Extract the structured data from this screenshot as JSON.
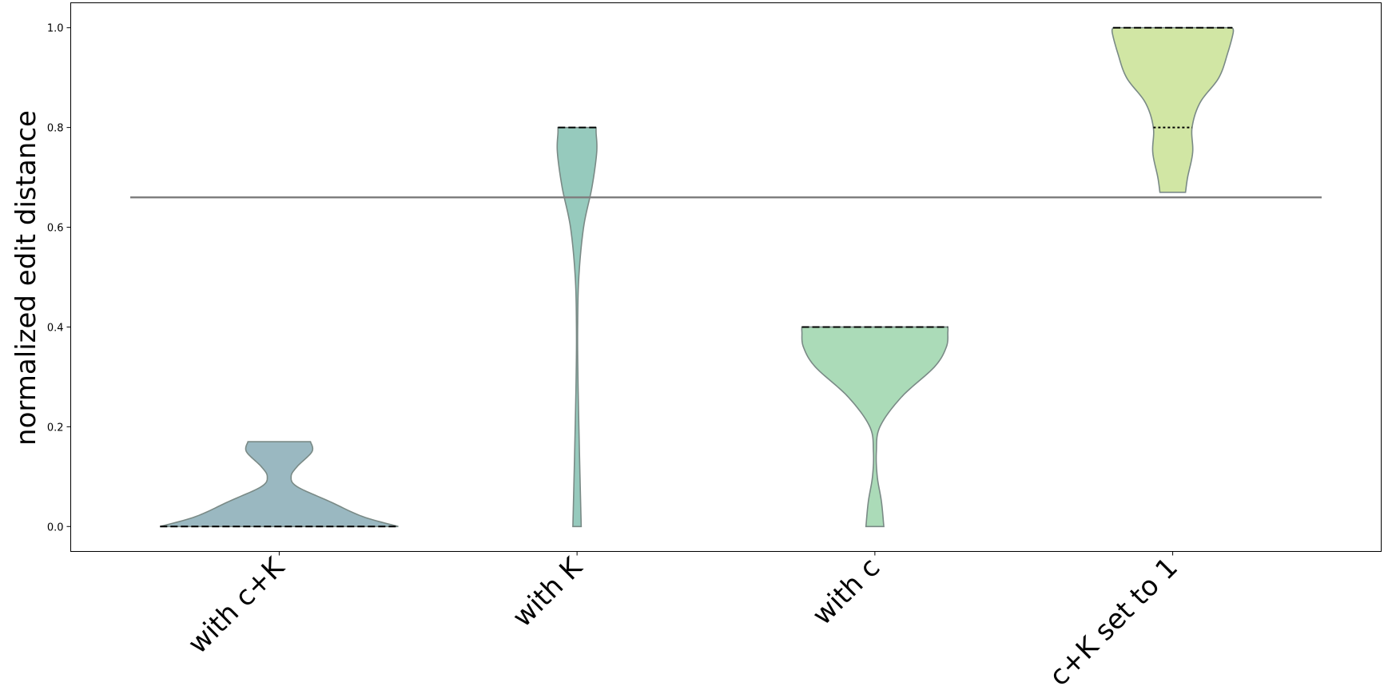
{
  "chart_data": {
    "type": "violin",
    "title": "",
    "xlabel": "",
    "ylabel": "normalized edit distance",
    "ylim": [
      -0.05,
      1.05
    ],
    "yticks": [
      0.0,
      0.2,
      0.4,
      0.6,
      0.8,
      1.0
    ],
    "ytick_labels": [
      "0.0",
      "0.2",
      "0.4",
      "0.6",
      "0.8",
      "1.0"
    ],
    "reference_line": 0.66,
    "reference_line_color": "#7f7f7f",
    "categories": [
      "with c+K",
      "with K",
      "with c",
      "c+K set to 1"
    ],
    "violins": [
      {
        "name": "with c+K",
        "color": "#9ab8c1",
        "min": 0.0,
        "max": 0.17,
        "median": 0.0,
        "quartile": 0.0,
        "density": [
          [
            0.0,
            0.4
          ],
          [
            0.02,
            0.28
          ],
          [
            0.05,
            0.17
          ],
          [
            0.08,
            0.06
          ],
          [
            0.1,
            0.04
          ],
          [
            0.12,
            0.06
          ],
          [
            0.15,
            0.11
          ],
          [
            0.17,
            0.105
          ]
        ]
      },
      {
        "name": "with K",
        "color": "#96cabd",
        "min": 0.0,
        "max": 0.8,
        "median": 0.8,
        "quartile": 0.8,
        "density": [
          [
            0.0,
            0.014
          ],
          [
            0.15,
            0.008
          ],
          [
            0.3,
            0.003
          ],
          [
            0.4,
            0.002
          ],
          [
            0.5,
            0.006
          ],
          [
            0.6,
            0.022
          ],
          [
            0.68,
            0.05
          ],
          [
            0.75,
            0.066
          ],
          [
            0.79,
            0.064
          ],
          [
            0.8,
            0.064
          ]
        ]
      },
      {
        "name": "with c",
        "color": "#abdbb8",
        "min": 0.0,
        "max": 0.4,
        "median": 0.4,
        "quartile": 0.4,
        "density": [
          [
            0.0,
            0.03
          ],
          [
            0.05,
            0.022
          ],
          [
            0.1,
            0.008
          ],
          [
            0.15,
            0.005
          ],
          [
            0.2,
            0.017
          ],
          [
            0.26,
            0.09
          ],
          [
            0.32,
            0.2
          ],
          [
            0.36,
            0.24
          ],
          [
            0.39,
            0.245
          ],
          [
            0.4,
            0.245
          ]
        ]
      },
      {
        "name": "c+K set to 1",
        "color": "#d1e6a4",
        "min": 0.67,
        "max": 1.0,
        "median": 1.0,
        "quartile": 0.8,
        "density": [
          [
            0.67,
            0.043
          ],
          [
            0.7,
            0.05
          ],
          [
            0.75,
            0.067
          ],
          [
            0.8,
            0.065
          ],
          [
            0.85,
            0.092
          ],
          [
            0.9,
            0.155
          ],
          [
            0.95,
            0.185
          ],
          [
            0.99,
            0.203
          ],
          [
            1.0,
            0.2
          ]
        ]
      }
    ]
  }
}
